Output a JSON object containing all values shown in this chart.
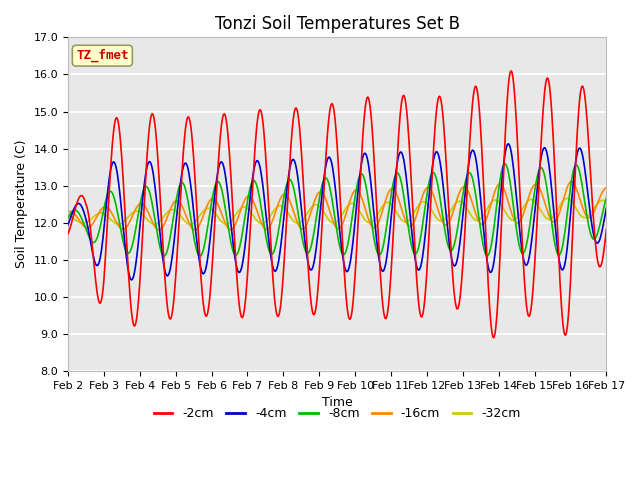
{
  "title": "Tonzi Soil Temperatures Set B",
  "xlabel": "Time",
  "ylabel": "Soil Temperature (C)",
  "ylim": [
    8.0,
    17.0
  ],
  "yticks": [
    8.0,
    9.0,
    10.0,
    11.0,
    12.0,
    13.0,
    14.0,
    15.0,
    16.0,
    17.0
  ],
  "xtick_labels": [
    "Feb 2",
    "Feb 3",
    "Feb 4",
    "Feb 5",
    "Feb 6",
    "Feb 7",
    "Feb 8",
    "Feb 9",
    "Feb 10",
    "Feb 11",
    "Feb 12",
    "Feb 13",
    "Feb 14",
    "Feb 15",
    "Feb 16",
    "Feb 17"
  ],
  "annotation_text": "TZ_fmet",
  "annotation_color": "#cc0000",
  "annotation_bg": "#ffffcc",
  "annotation_border": "#999966",
  "colors": {
    "-2cm": "#ff0000",
    "-4cm": "#0000cc",
    "-8cm": "#00bb00",
    "-16cm": "#ff8800",
    "-32cm": "#cccc00"
  },
  "legend_labels": [
    "-2cm",
    "-4cm",
    "-8cm",
    "-16cm",
    "-32cm"
  ],
  "plot_bg": "#e8e8e8",
  "fig_bg": "#ffffff",
  "title_fontsize": 12,
  "axis_fontsize": 9,
  "tick_fontsize": 8
}
